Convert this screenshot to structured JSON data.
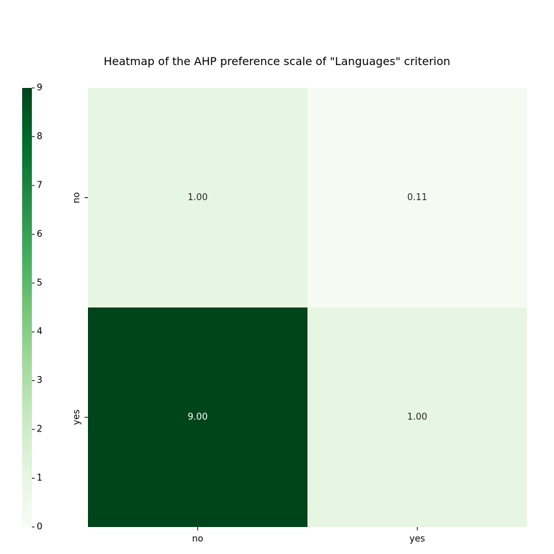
{
  "chart_data": {
    "type": "heatmap",
    "title": "Heatmap of the AHP preference scale of \"Languages\" criterion",
    "xlabel": "",
    "ylabel": "",
    "x_categories": [
      "no",
      "yes"
    ],
    "y_categories": [
      "no",
      "yes"
    ],
    "values": [
      [
        1.0,
        0.11
      ],
      [
        9.0,
        1.0
      ]
    ],
    "cell_labels": [
      [
        "1.00",
        "0.11"
      ],
      [
        "9.00",
        "1.00"
      ]
    ],
    "colormap": "Greens",
    "colorbar": {
      "position": "left",
      "range": [
        0,
        9
      ],
      "ticks": [
        "0",
        "1",
        "2",
        "3",
        "4",
        "5",
        "6",
        "7",
        "8",
        "9"
      ]
    },
    "grid": false
  }
}
